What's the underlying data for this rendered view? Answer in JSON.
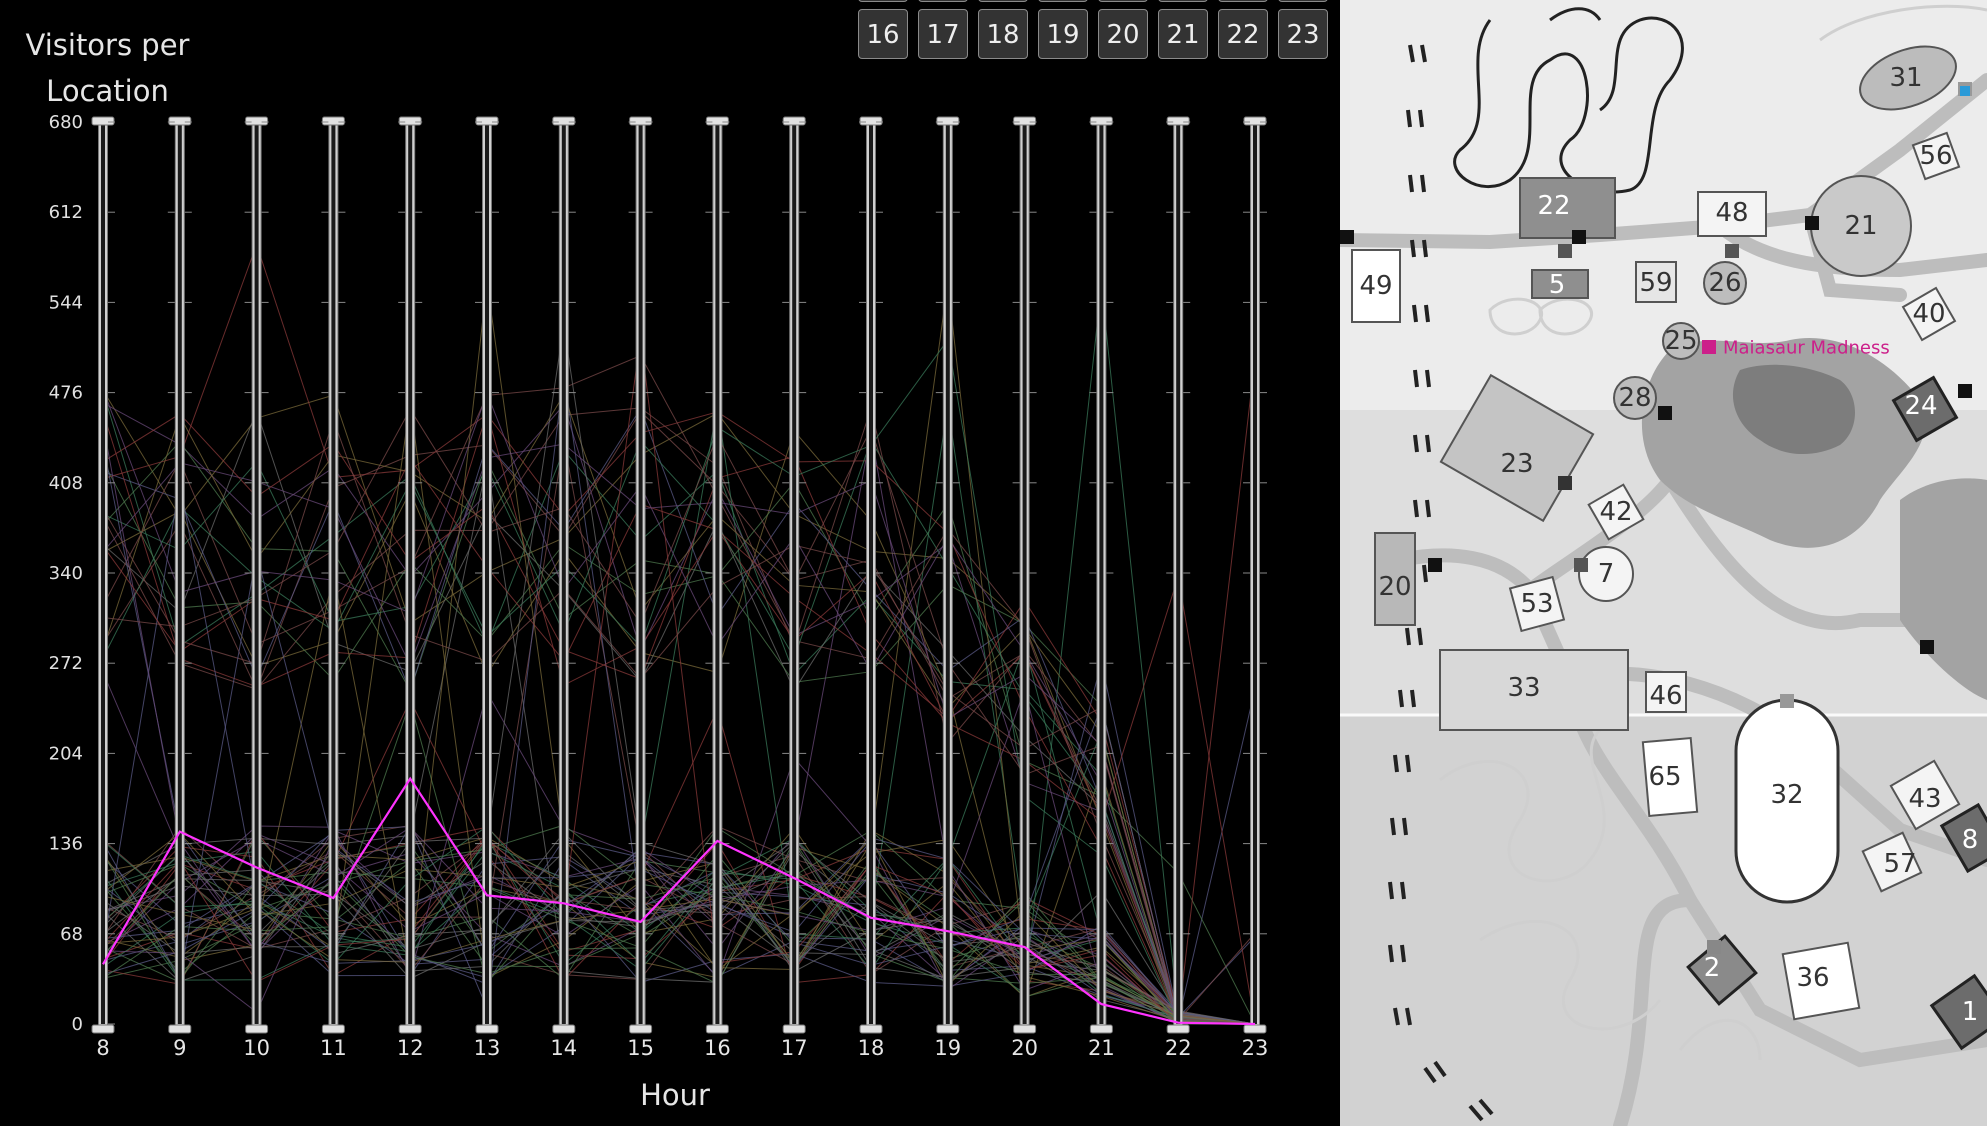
{
  "chart_data": {
    "type": "line",
    "ylabel": "Visitors per Location",
    "xlabel": "Hour",
    "x": [
      8,
      9,
      10,
      11,
      12,
      13,
      14,
      15,
      16,
      17,
      18,
      19,
      20,
      21,
      22,
      23
    ],
    "y_ticks": [
      0,
      68,
      136,
      204,
      272,
      340,
      408,
      476,
      544,
      612,
      680
    ],
    "ylim": [
      0,
      680
    ],
    "highlight_series": {
      "name": "Maiasaur Madness",
      "color": "#ff33ff",
      "values": [
        45,
        145,
        118,
        95,
        185,
        97,
        91,
        77,
        138,
        110,
        80,
        70,
        58,
        15,
        1,
        0
      ]
    }
  },
  "hour_buttons": [
    "16",
    "17",
    "18",
    "19",
    "20",
    "21",
    "22",
    "23"
  ],
  "map": {
    "selected_location": "Maiasaur Madness",
    "selected_color": "#cc1f8a",
    "locations": [
      {
        "id": "31",
        "label": "31"
      },
      {
        "id": "56",
        "label": "56"
      },
      {
        "id": "22",
        "label": "22"
      },
      {
        "id": "48",
        "label": "48"
      },
      {
        "id": "21",
        "label": "21"
      },
      {
        "id": "49",
        "label": "49"
      },
      {
        "id": "5",
        "label": "5"
      },
      {
        "id": "59",
        "label": "59"
      },
      {
        "id": "26",
        "label": "26"
      },
      {
        "id": "40",
        "label": "40"
      },
      {
        "id": "25",
        "label": "25"
      },
      {
        "id": "28",
        "label": "28"
      },
      {
        "id": "24",
        "label": "24"
      },
      {
        "id": "23",
        "label": "23"
      },
      {
        "id": "42",
        "label": "42"
      },
      {
        "id": "7",
        "label": "7"
      },
      {
        "id": "20",
        "label": "20"
      },
      {
        "id": "53",
        "label": "53"
      },
      {
        "id": "33",
        "label": "33"
      },
      {
        "id": "46",
        "label": "46"
      },
      {
        "id": "32",
        "label": "32"
      },
      {
        "id": "65",
        "label": "65"
      },
      {
        "id": "43",
        "label": "43"
      },
      {
        "id": "8",
        "label": "8"
      },
      {
        "id": "57",
        "label": "57"
      },
      {
        "id": "2",
        "label": "2"
      },
      {
        "id": "36",
        "label": "36"
      },
      {
        "id": "1",
        "label": "1"
      }
    ]
  }
}
